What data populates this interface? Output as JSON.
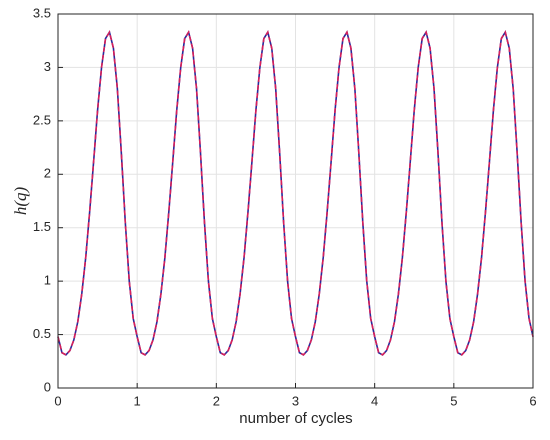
{
  "chart_data": {
    "type": "line",
    "xlabel": "number of cycles",
    "ylabel": "h(q)",
    "xlim": [
      0,
      6
    ],
    "xticks": [
      0,
      1,
      2,
      3,
      4,
      5,
      6
    ],
    "ylim": [
      0,
      3.5
    ],
    "yticks": [
      0,
      0.5,
      1,
      1.5,
      2,
      2.5,
      3,
      3.5
    ],
    "grid": true,
    "x": [
      0,
      0.05,
      0.1,
      0.15,
      0.2,
      0.25,
      0.3,
      0.35,
      0.4,
      0.45,
      0.5,
      0.55,
      0.6,
      0.65,
      0.7,
      0.75,
      0.8,
      0.85,
      0.9,
      0.95,
      1,
      1.05,
      1.1,
      1.15,
      1.2,
      1.25,
      1.3,
      1.35,
      1.4,
      1.45,
      1.5,
      1.55,
      1.6,
      1.65,
      1.7,
      1.75,
      1.8,
      1.85,
      1.9,
      1.95,
      2,
      2.05,
      2.1,
      2.15,
      2.2,
      2.25,
      2.3,
      2.35,
      2.4,
      2.45,
      2.5,
      2.55,
      2.6,
      2.65,
      2.7,
      2.75,
      2.8,
      2.85,
      2.9,
      2.95,
      3,
      3.05,
      3.1,
      3.15,
      3.2,
      3.25,
      3.3,
      3.35,
      3.4,
      3.45,
      3.5,
      3.55,
      3.6,
      3.65,
      3.7,
      3.75,
      3.8,
      3.85,
      3.9,
      3.95,
      4,
      4.05,
      4.1,
      4.15,
      4.2,
      4.25,
      4.3,
      4.35,
      4.4,
      4.45,
      4.5,
      4.55,
      4.6,
      4.65,
      4.7,
      4.75,
      4.8,
      4.85,
      4.9,
      4.95,
      5,
      5.05,
      5.1,
      5.15,
      5.2,
      5.25,
      5.3,
      5.35,
      5.4,
      5.45,
      5.5,
      5.55,
      5.6,
      5.65,
      5.7,
      5.75,
      5.8,
      5.85,
      5.9,
      5.95,
      6
    ],
    "series": [
      {
        "color": "#2a2a9a",
        "dash": false,
        "values": [
          0.48,
          0.33,
          0.31,
          0.35,
          0.45,
          0.62,
          0.88,
          1.22,
          1.65,
          2.12,
          2.6,
          3.0,
          3.27,
          3.33,
          3.18,
          2.8,
          2.2,
          1.55,
          1.0,
          0.65,
          0.48,
          0.33,
          0.31,
          0.35,
          0.45,
          0.62,
          0.88,
          1.22,
          1.65,
          2.12,
          2.6,
          3.0,
          3.27,
          3.33,
          3.18,
          2.8,
          2.2,
          1.55,
          1.0,
          0.65,
          0.48,
          0.33,
          0.31,
          0.35,
          0.45,
          0.62,
          0.88,
          1.22,
          1.65,
          2.12,
          2.6,
          3.0,
          3.27,
          3.33,
          3.18,
          2.8,
          2.2,
          1.55,
          1.0,
          0.65,
          0.48,
          0.33,
          0.31,
          0.35,
          0.45,
          0.62,
          0.88,
          1.22,
          1.65,
          2.12,
          2.6,
          3.0,
          3.27,
          3.33,
          3.18,
          2.8,
          2.2,
          1.55,
          1.0,
          0.65,
          0.48,
          0.33,
          0.31,
          0.35,
          0.45,
          0.62,
          0.88,
          1.22,
          1.65,
          2.12,
          2.6,
          3.0,
          3.27,
          3.33,
          3.18,
          2.8,
          2.2,
          1.55,
          1.0,
          0.65,
          0.48,
          0.33,
          0.31,
          0.35,
          0.45,
          0.62,
          0.88,
          1.22,
          1.65,
          2.12,
          2.6,
          3.0,
          3.27,
          3.33,
          3.18,
          2.8,
          2.2,
          1.55,
          1.0,
          0.65,
          0.48
        ]
      },
      {
        "color": "#d9205a",
        "dash": true,
        "values": [
          0.48,
          0.33,
          0.31,
          0.35,
          0.45,
          0.62,
          0.88,
          1.22,
          1.65,
          2.12,
          2.6,
          3.0,
          3.27,
          3.33,
          3.18,
          2.8,
          2.2,
          1.55,
          1.0,
          0.65,
          0.48,
          0.33,
          0.31,
          0.35,
          0.45,
          0.62,
          0.88,
          1.22,
          1.65,
          2.12,
          2.6,
          3.0,
          3.27,
          3.33,
          3.18,
          2.8,
          2.2,
          1.55,
          1.0,
          0.65,
          0.48,
          0.33,
          0.31,
          0.35,
          0.45,
          0.62,
          0.88,
          1.22,
          1.65,
          2.12,
          2.6,
          3.0,
          3.27,
          3.33,
          3.18,
          2.8,
          2.2,
          1.55,
          1.0,
          0.65,
          0.48,
          0.33,
          0.31,
          0.35,
          0.45,
          0.62,
          0.88,
          1.22,
          1.65,
          2.12,
          2.6,
          3.0,
          3.27,
          3.33,
          3.18,
          2.8,
          2.2,
          1.55,
          1.0,
          0.65,
          0.48,
          0.33,
          0.31,
          0.35,
          0.45,
          0.62,
          0.88,
          1.22,
          1.65,
          2.12,
          2.6,
          3.0,
          3.27,
          3.33,
          3.18,
          2.8,
          2.2,
          1.55,
          1.0,
          0.65,
          0.48,
          0.33,
          0.31,
          0.35,
          0.45,
          0.62,
          0.88,
          1.22,
          1.65,
          2.12,
          2.6,
          3.0,
          3.27,
          3.33,
          3.18,
          2.8,
          2.2,
          1.55,
          1.0,
          0.65,
          0.48
        ]
      }
    ]
  }
}
